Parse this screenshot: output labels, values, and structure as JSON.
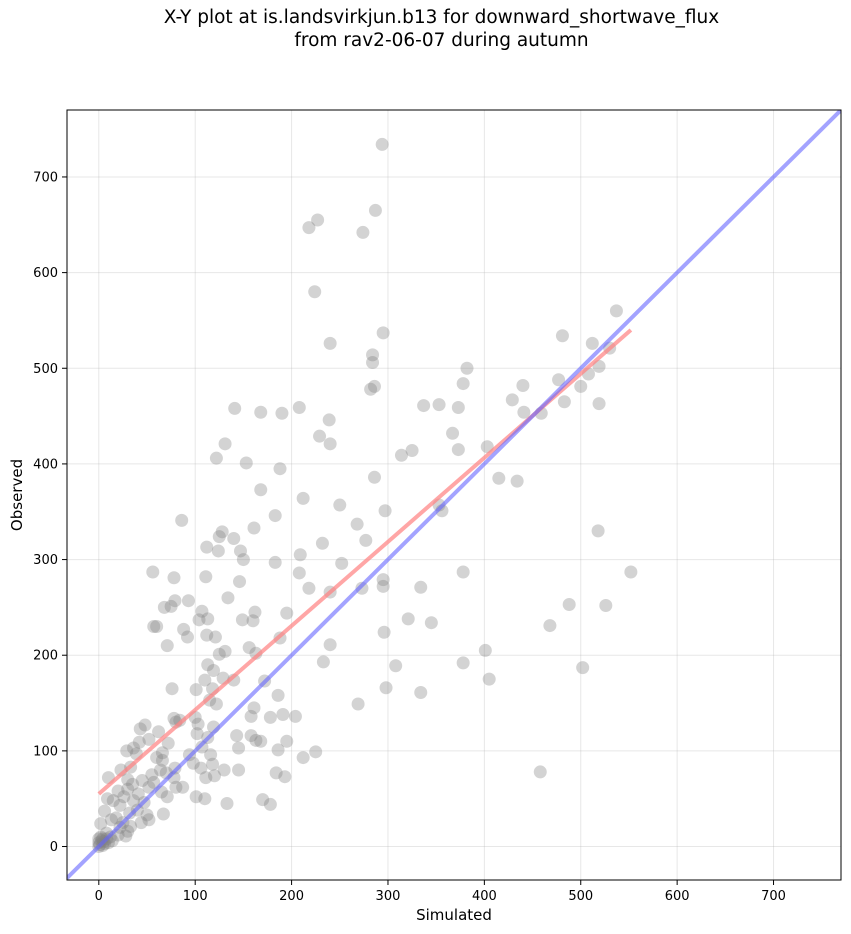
{
  "title_line1": "X-Y plot at is.landsvirkjun.b13 for downward_shortwave_flux",
  "title_line2": "from rav2-06-07 during autumn",
  "chart_data": {
    "type": "scatter",
    "title": "X-Y plot at is.landsvirkjun.b13 for downward_shortwave_flux from rav2-06-07 during autumn",
    "xlabel": "Simulated",
    "ylabel": "Observed",
    "xlim": [
      -33,
      770
    ],
    "ylim": [
      -35,
      770
    ],
    "xticks": [
      0,
      100,
      200,
      300,
      400,
      500,
      600,
      700
    ],
    "yticks": [
      0,
      100,
      200,
      300,
      400,
      500,
      600,
      700
    ],
    "grid": true,
    "point_color": "#808080",
    "one_to_one_line": {
      "color": "#6666ff",
      "from": [
        -33,
        -33
      ],
      "to": [
        770,
        770
      ]
    },
    "fit_line": {
      "color": "#ff8080",
      "from": [
        0,
        55
      ],
      "to": [
        552,
        540
      ]
    },
    "points": [
      [
        294,
        734
      ],
      [
        287,
        665
      ],
      [
        227,
        655
      ],
      [
        218,
        647
      ],
      [
        274,
        642
      ],
      [
        224,
        580
      ],
      [
        537,
        560
      ],
      [
        295,
        537
      ],
      [
        481,
        534
      ],
      [
        240,
        526
      ],
      [
        530,
        521
      ],
      [
        512,
        526
      ],
      [
        284,
        514
      ],
      [
        382,
        500
      ],
      [
        284,
        506
      ],
      [
        519,
        502
      ],
      [
        508,
        494
      ],
      [
        477,
        488
      ],
      [
        500,
        481
      ],
      [
        378,
        484
      ],
      [
        286,
        481
      ],
      [
        282,
        478
      ],
      [
        440,
        482
      ],
      [
        429,
        467
      ],
      [
        483,
        465
      ],
      [
        519,
        463
      ],
      [
        208,
        459
      ],
      [
        373,
        459
      ],
      [
        337,
        461
      ],
      [
        353,
        462
      ],
      [
        141,
        458
      ],
      [
        168,
        454
      ],
      [
        190,
        453
      ],
      [
        441,
        454
      ],
      [
        459,
        453
      ],
      [
        239,
        446
      ],
      [
        229,
        429
      ],
      [
        367,
        432
      ],
      [
        131,
        421
      ],
      [
        240,
        421
      ],
      [
        403,
        418
      ],
      [
        373,
        415
      ],
      [
        325,
        414
      ],
      [
        314,
        409
      ],
      [
        122,
        406
      ],
      [
        153,
        401
      ],
      [
        188,
        395
      ],
      [
        415,
        385
      ],
      [
        434,
        382
      ],
      [
        286,
        386
      ],
      [
        168,
        373
      ],
      [
        212,
        364
      ],
      [
        250,
        357
      ],
      [
        353,
        357
      ],
      [
        356,
        351
      ],
      [
        297,
        351
      ],
      [
        86,
        341
      ],
      [
        183,
        346
      ],
      [
        268,
        337
      ],
      [
        161,
        333
      ],
      [
        128,
        329
      ],
      [
        518,
        330
      ],
      [
        125,
        324
      ],
      [
        140,
        322
      ],
      [
        277,
        320
      ],
      [
        232,
        317
      ],
      [
        112,
        313
      ],
      [
        147,
        309
      ],
      [
        124,
        309
      ],
      [
        209,
        305
      ],
      [
        150,
        300
      ],
      [
        183,
        297
      ],
      [
        252,
        296
      ],
      [
        208,
        286
      ],
      [
        56,
        287
      ],
      [
        378,
        287
      ],
      [
        552,
        287
      ],
      [
        111,
        282
      ],
      [
        78,
        281
      ],
      [
        295,
        279
      ],
      [
        146,
        277
      ],
      [
        295,
        272
      ],
      [
        273,
        270
      ],
      [
        334,
        271
      ],
      [
        218,
        270
      ],
      [
        240,
        266
      ],
      [
        134,
        260
      ],
      [
        79,
        257
      ],
      [
        93,
        257
      ],
      [
        75,
        251
      ],
      [
        68,
        250
      ],
      [
        488,
        253
      ],
      [
        526,
        252
      ],
      [
        107,
        246
      ],
      [
        195,
        244
      ],
      [
        162,
        245
      ],
      [
        104,
        237
      ],
      [
        113,
        238
      ],
      [
        160,
        236
      ],
      [
        149,
        237
      ],
      [
        321,
        238
      ],
      [
        345,
        234
      ],
      [
        57,
        230
      ],
      [
        60,
        230
      ],
      [
        468,
        231
      ],
      [
        88,
        227
      ],
      [
        296,
        224
      ],
      [
        112,
        221
      ],
      [
        92,
        219
      ],
      [
        121,
        219
      ],
      [
        188,
        218
      ],
      [
        240,
        211
      ],
      [
        71,
        210
      ],
      [
        156,
        208
      ],
      [
        131,
        204
      ],
      [
        401,
        205
      ],
      [
        125,
        201
      ],
      [
        163,
        202
      ],
      [
        113,
        190
      ],
      [
        233,
        193
      ],
      [
        378,
        192
      ],
      [
        502,
        187
      ],
      [
        308,
        189
      ],
      [
        119,
        184
      ],
      [
        110,
        174
      ],
      [
        172,
        173
      ],
      [
        140,
        174
      ],
      [
        129,
        176
      ],
      [
        405,
        175
      ],
      [
        298,
        166
      ],
      [
        76,
        165
      ],
      [
        101,
        164
      ],
      [
        118,
        165
      ],
      [
        334,
        161
      ],
      [
        186,
        158
      ],
      [
        115,
        153
      ],
      [
        122,
        149
      ],
      [
        269,
        149
      ],
      [
        161,
        145
      ],
      [
        78,
        134
      ],
      [
        100,
        135
      ],
      [
        84,
        132
      ],
      [
        80,
        130
      ],
      [
        158,
        136
      ],
      [
        191,
        138
      ],
      [
        204,
        136
      ],
      [
        178,
        135
      ],
      [
        103,
        128
      ],
      [
        119,
        125
      ],
      [
        48,
        127
      ],
      [
        43,
        123
      ],
      [
        102,
        118
      ],
      [
        113,
        114
      ],
      [
        143,
        116
      ],
      [
        158,
        116
      ],
      [
        52,
        112
      ],
      [
        62,
        120
      ],
      [
        72,
        108
      ],
      [
        42,
        109
      ],
      [
        163,
        111
      ],
      [
        195,
        110
      ],
      [
        168,
        110
      ],
      [
        145,
        103
      ],
      [
        107,
        104
      ],
      [
        186,
        101
      ],
      [
        225,
        99
      ],
      [
        29,
        100
      ],
      [
        36,
        103
      ],
      [
        39,
        97
      ],
      [
        66,
        98
      ],
      [
        94,
        96
      ],
      [
        116,
        96
      ],
      [
        60,
        93
      ],
      [
        66,
        90
      ],
      [
        98,
        87
      ],
      [
        118,
        86
      ],
      [
        79,
        82
      ],
      [
        106,
        82
      ],
      [
        130,
        80
      ],
      [
        145,
        80
      ],
      [
        212,
        93
      ],
      [
        33,
        83
      ],
      [
        23,
        80
      ],
      [
        64,
        80
      ],
      [
        70,
        77
      ],
      [
        30,
        70
      ],
      [
        10,
        72
      ],
      [
        55,
        75
      ],
      [
        57,
        67
      ],
      [
        78,
        72
      ],
      [
        111,
        72
      ],
      [
        120,
        74
      ],
      [
        184,
        77
      ],
      [
        193,
        73
      ],
      [
        458,
        78
      ],
      [
        45,
        69
      ],
      [
        35,
        65
      ],
      [
        30,
        60
      ],
      [
        41,
        55
      ],
      [
        52,
        62
      ],
      [
        80,
        62
      ],
      [
        65,
        57
      ],
      [
        71,
        52
      ],
      [
        87,
        62
      ],
      [
        101,
        52
      ],
      [
        110,
        50
      ],
      [
        170,
        49
      ],
      [
        178,
        44
      ],
      [
        133,
        45
      ],
      [
        20,
        58
      ],
      [
        26,
        52
      ],
      [
        15,
        48
      ],
      [
        9,
        50
      ],
      [
        36,
        48
      ],
      [
        47,
        46
      ],
      [
        22,
        43
      ],
      [
        40,
        38
      ],
      [
        32,
        35
      ],
      [
        50,
        33
      ],
      [
        67,
        34
      ],
      [
        52,
        28
      ],
      [
        6,
        37
      ],
      [
        2,
        24
      ],
      [
        13,
        28
      ],
      [
        18,
        30
      ],
      [
        25,
        25
      ],
      [
        33,
        21
      ],
      [
        44,
        25
      ],
      [
        30,
        16
      ],
      [
        8,
        14
      ],
      [
        12,
        10
      ],
      [
        4,
        8
      ],
      [
        0,
        4
      ],
      [
        1,
        2
      ],
      [
        3,
        6
      ],
      [
        6,
        3
      ],
      [
        2,
        10
      ],
      [
        10,
        4
      ],
      [
        5,
        5
      ],
      [
        0,
        0
      ],
      [
        8,
        8
      ],
      [
        14,
        6
      ],
      [
        20,
        12
      ],
      [
        0,
        8
      ],
      [
        4,
        1
      ],
      [
        28,
        11
      ],
      [
        22,
        20
      ]
    ]
  }
}
